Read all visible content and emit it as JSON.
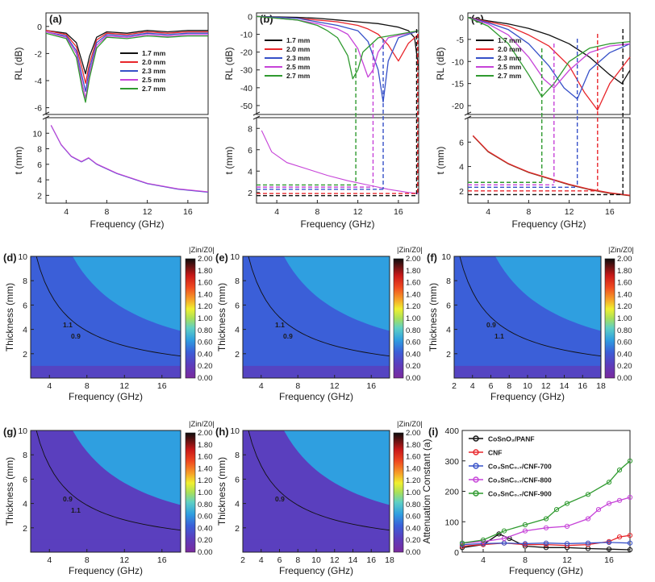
{
  "panels_top": [
    {
      "label": "(a)",
      "xlabel": "Frequency (GHz)",
      "y_upper_label": "RL (dB)",
      "y_lower_label": "t (mm)",
      "x_ticks": [
        4,
        8,
        12,
        16
      ],
      "upper_ticks": [
        "0",
        "-2",
        "-4",
        "-6"
      ],
      "lower_ticks": [
        "2",
        "4",
        "6",
        "8",
        "10"
      ]
    },
    {
      "label": "(b)",
      "xlabel": "Frequency (GHz)",
      "y_upper_label": "RL (dB)",
      "y_lower_label": "t (mm)",
      "x_ticks": [
        4,
        8,
        12,
        16
      ],
      "upper_ticks": [
        "0",
        "-10",
        "-20",
        "-30",
        "-40",
        "-50"
      ],
      "lower_ticks": [
        "2",
        "4",
        "6",
        "8"
      ]
    },
    {
      "label": "(c)",
      "xlabel": "Frequency (GHz)",
      "y_upper_label": "RL (dB)",
      "y_lower_label": "t (mm)",
      "x_ticks": [
        4,
        8,
        12,
        16
      ],
      "upper_ticks": [
        "0",
        "-5",
        "-10",
        "-15",
        "-20"
      ],
      "lower_ticks": [
        "2",
        "4",
        "6"
      ]
    }
  ],
  "legend_thickness": [
    "1.7 mm",
    "2.0 mm",
    "2.3 mm",
    "2.5 mm",
    "2.7 mm"
  ],
  "series_colors": [
    "#111111",
    "#e8262b",
    "#3650c8",
    "#c643d8",
    "#2f9a2f"
  ],
  "contour_panels": [
    {
      "label": "(d)",
      "cbar_title": "|Zin/Z0|",
      "xlabel": "Frequency (GHz)",
      "ylabel": "Thickness (mm)",
      "x_ticks": [
        "4",
        "8",
        "12",
        "16"
      ],
      "contour_labels": [
        "1.1",
        "0.9"
      ]
    },
    {
      "label": "(e)",
      "cbar_title": "|Zin/Z0|",
      "xlabel": "Frequency (GHz)",
      "ylabel": "Thickness (mm)",
      "x_ticks": [
        "4",
        "8",
        "12",
        "16"
      ],
      "contour_labels": [
        "1.1",
        "0.9"
      ]
    },
    {
      "label": "(f)",
      "cbar_title": "|Zin/Z0|",
      "xlabel": "Frequency (GHz)",
      "ylabel": "Thickness (mm)",
      "x_ticks": [
        "2",
        "4",
        "6",
        "8",
        "10",
        "12",
        "14",
        "16",
        "18"
      ],
      "contour_labels": [
        "0.9",
        "1.1"
      ]
    },
    {
      "label": "(g)",
      "cbar_title": "|Zin/Z0|",
      "xlabel": "Frequency (GHz)",
      "ylabel": "Thickness (mm)",
      "x_ticks": [
        "4",
        "8",
        "12",
        "16"
      ],
      "contour_labels": [
        "0.9",
        "1.1"
      ]
    },
    {
      "label": "(h)",
      "cbar_title": "|Zin/Z0|",
      "xlabel": "Frequency (GHz)",
      "ylabel": "Thickness (mm)",
      "x_ticks": [
        "2",
        "4",
        "6",
        "8",
        "10",
        "12",
        "14",
        "16",
        "18"
      ],
      "contour_labels": [
        "0.9"
      ]
    }
  ],
  "contour_y_ticks": [
    "2",
    "4",
    "6",
    "8",
    "10"
  ],
  "colorbar_ticks": [
    "2.00",
    "1.80",
    "1.60",
    "1.40",
    "1.20",
    "1.00",
    "0.80",
    "0.60",
    "0.40",
    "0.20",
    "0.00"
  ],
  "panel_i": {
    "label": "(i)",
    "xlabel": "Frequency (GHz)",
    "ylabel": "Attenuation Constant (a)",
    "x_ticks": [
      "4",
      "8",
      "12",
      "16"
    ],
    "y_ticks": [
      "0",
      "100",
      "200",
      "300",
      "400"
    ],
    "legend": [
      "CoSnO₃/PANF",
      "CNF",
      "Co₃SnC₀.₇/CNF-700",
      "Co₃SnC₀.₇/CNF-800",
      "Co₃SnC₀.₇/CNF-900"
    ]
  },
  "chart_data": [
    {
      "type": "line",
      "title": "(a)",
      "xlabel": "Frequency (GHz)",
      "ylabel": "RL (dB)",
      "xlim": [
        2,
        18
      ],
      "ylim": [
        -6.5,
        1
      ],
      "series": [
        {
          "name": "1.7 mm",
          "x": [
            2,
            4,
            5,
            5.6,
            5.9,
            6.3,
            7,
            8,
            10,
            12,
            14,
            16,
            18
          ],
          "values": [
            -0.3,
            -0.5,
            -1.2,
            -2.7,
            -3.5,
            -2.2,
            -0.8,
            -0.4,
            -0.5,
            -0.3,
            -0.4,
            -0.3,
            -0.3
          ]
        },
        {
          "name": "2.0 mm",
          "x": [
            2,
            4,
            5,
            5.6,
            5.9,
            6.3,
            7,
            8,
            10,
            12,
            14,
            16,
            18
          ],
          "values": [
            -0.3,
            -0.6,
            -1.5,
            -3.2,
            -4.2,
            -2.7,
            -1,
            -0.5,
            -0.6,
            -0.4,
            -0.5,
            -0.4,
            -0.4
          ]
        },
        {
          "name": "2.3 mm",
          "x": [
            2,
            4,
            5,
            5.6,
            5.9,
            6.3,
            7,
            8,
            10,
            12,
            14,
            16,
            18
          ],
          "values": [
            -0.4,
            -0.7,
            -1.8,
            -3.8,
            -4.8,
            -3.1,
            -1.2,
            -0.6,
            -0.7,
            -0.5,
            -0.6,
            -0.5,
            -0.5
          ]
        },
        {
          "name": "2.5 mm",
          "x": [
            2,
            4,
            5,
            5.6,
            5.9,
            6.3,
            7,
            8,
            10,
            12,
            14,
            16,
            18
          ],
          "values": [
            -0.4,
            -0.8,
            -2,
            -4.3,
            -5.3,
            -3.5,
            -1.4,
            -0.7,
            -0.8,
            -0.6,
            -0.7,
            -0.6,
            -0.6
          ]
        },
        {
          "name": "2.7 mm",
          "x": [
            2,
            4,
            5,
            5.6,
            5.9,
            6.3,
            7,
            8,
            10,
            12,
            14,
            16,
            18
          ],
          "values": [
            -0.5,
            -0.9,
            -2.3,
            -4.7,
            -5.6,
            -3.8,
            -1.6,
            -0.8,
            -0.9,
            -0.7,
            -0.8,
            -0.7,
            -0.7
          ]
        }
      ]
    },
    {
      "type": "line",
      "title": "(b)",
      "xlabel": "Frequency (GHz)",
      "ylabel": "RL (dB)",
      "xlim": [
        2,
        18
      ],
      "ylim": [
        -55,
        2
      ],
      "series": [
        {
          "name": "1.7 mm",
          "x": [
            2,
            6,
            8,
            10,
            12,
            14,
            15,
            16,
            17,
            17.6,
            18
          ],
          "values": [
            0,
            -0.5,
            -1,
            -2,
            -3,
            -4,
            -5,
            -6,
            -8,
            -12,
            -30
          ]
        },
        {
          "name": "2.0 mm",
          "x": [
            2,
            6,
            8,
            10,
            12,
            13,
            14,
            15,
            16,
            17,
            18
          ],
          "values": [
            0,
            -1,
            -2,
            -3,
            -5,
            -7,
            -10,
            -16,
            -25,
            -15,
            -10
          ]
        },
        {
          "name": "2.3 mm",
          "x": [
            2,
            6,
            8,
            10,
            12,
            13,
            14,
            14.5,
            15,
            16,
            18
          ],
          "values": [
            0,
            -1,
            -3,
            -5,
            -8,
            -14,
            -30,
            -48,
            -25,
            -12,
            -8
          ]
        },
        {
          "name": "2.5 mm",
          "x": [
            2,
            6,
            8,
            10,
            11,
            12,
            13,
            13.5,
            14,
            15,
            18
          ],
          "values": [
            0,
            -2,
            -4,
            -7,
            -10,
            -18,
            -34,
            -30,
            -20,
            -12,
            -8
          ]
        },
        {
          "name": "2.7 mm",
          "x": [
            2,
            6,
            8,
            9,
            10,
            11,
            11.5,
            12,
            12.5,
            14,
            18
          ],
          "values": [
            0,
            -2,
            -5,
            -8,
            -12,
            -22,
            -35,
            -30,
            -20,
            -12,
            -8
          ]
        }
      ]
    },
    {
      "type": "line",
      "title": "(c)",
      "xlabel": "Frequency (GHz)",
      "ylabel": "RL (dB)",
      "xlim": [
        2,
        18
      ],
      "ylim": [
        -22,
        1
      ],
      "series": [
        {
          "name": "1.7 mm",
          "x": [
            2,
            4,
            6,
            8,
            10,
            12,
            14,
            16,
            17.2,
            18
          ],
          "values": [
            0,
            -0.8,
            -1.5,
            -2.5,
            -4,
            -6,
            -9,
            -13,
            -15,
            -12
          ]
        },
        {
          "name": "2.0 mm",
          "x": [
            2,
            4,
            6,
            8,
            10,
            12,
            13.5,
            14.8,
            16,
            18
          ],
          "values": [
            0,
            -1,
            -2,
            -4,
            -6.5,
            -11,
            -17,
            -21,
            -15,
            -9
          ]
        },
        {
          "name": "2.3 mm",
          "x": [
            2,
            4,
            6,
            8,
            10,
            11.5,
            12.8,
            14,
            16,
            18
          ],
          "values": [
            0,
            -1.2,
            -2.8,
            -6,
            -11,
            -16,
            -18.5,
            -12,
            -8,
            -6
          ]
        },
        {
          "name": "2.5 mm",
          "x": [
            2,
            4,
            6,
            8,
            9.5,
            10.5,
            12,
            14,
            16,
            18
          ],
          "values": [
            0,
            -1.5,
            -4,
            -9,
            -14,
            -16,
            -12,
            -8,
            -6.5,
            -6
          ]
        },
        {
          "name": "2.7 mm",
          "x": [
            2,
            4,
            6,
            8,
            9.3,
            10.5,
            12,
            14,
            16,
            18
          ],
          "values": [
            0,
            -2,
            -6,
            -13,
            -18,
            -15,
            -10,
            -7,
            -6,
            -5.5
          ]
        }
      ]
    },
    {
      "type": "line",
      "title": "(i)",
      "xlabel": "Frequency (GHz)",
      "ylabel": "Attenuation Constant (a)",
      "xlim": [
        2,
        18
      ],
      "ylim": [
        0,
        400
      ],
      "series": [
        {
          "name": "CoSnO₃/PANF",
          "x": [
            2,
            4,
            5.5,
            6.5,
            8,
            10,
            12,
            14,
            16,
            18
          ],
          "values": [
            15,
            25,
            60,
            45,
            20,
            15,
            15,
            12,
            10,
            8
          ]
        },
        {
          "name": "CNF",
          "x": [
            2,
            4,
            6,
            8,
            10,
            12,
            14,
            16,
            17,
            18
          ],
          "values": [
            20,
            25,
            30,
            25,
            25,
            22,
            25,
            35,
            50,
            55
          ]
        },
        {
          "name": "Co₃SnC₀.₇/CNF-700",
          "x": [
            2,
            4,
            6,
            8,
            10,
            12,
            14,
            16,
            18
          ],
          "values": [
            25,
            28,
            30,
            28,
            30,
            28,
            30,
            32,
            30
          ]
        },
        {
          "name": "Co₃SnC₀.₇/CNF-800",
          "x": [
            2,
            4,
            6,
            8,
            10,
            12,
            14,
            15,
            16,
            17,
            18
          ],
          "values": [
            30,
            35,
            45,
            70,
            80,
            85,
            110,
            140,
            160,
            170,
            180
          ]
        },
        {
          "name": "Co₃SnC₀.₇/CNF-900",
          "x": [
            2,
            4,
            6,
            8,
            10,
            11,
            12,
            14,
            16,
            17,
            18
          ],
          "values": [
            30,
            40,
            70,
            90,
            110,
            140,
            160,
            190,
            230,
            270,
            300
          ]
        }
      ]
    }
  ]
}
